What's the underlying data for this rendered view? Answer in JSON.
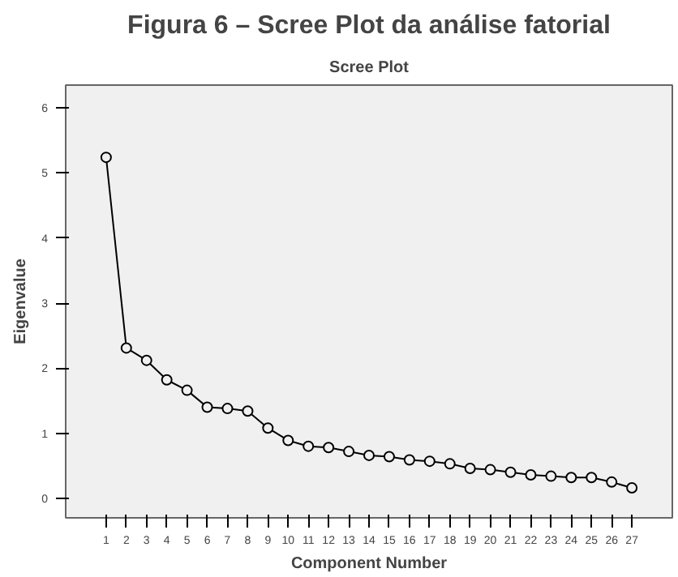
{
  "chart_data": {
    "type": "line",
    "title": "Figura 6 – Scree Plot da análise fatorial",
    "subtitle": "Scree Plot",
    "xlabel": "Component Number",
    "ylabel": "Eigenvalue",
    "x": [
      1,
      2,
      3,
      4,
      5,
      6,
      7,
      8,
      9,
      10,
      11,
      12,
      13,
      14,
      15,
      16,
      17,
      18,
      19,
      20,
      21,
      22,
      23,
      24,
      25,
      26,
      27
    ],
    "series": [
      {
        "color": "#000000",
        "values": [
          5.24,
          2.31,
          2.12,
          1.82,
          1.66,
          1.4,
          1.38,
          1.34,
          1.08,
          0.89,
          0.8,
          0.78,
          0.72,
          0.66,
          0.64,
          0.59,
          0.57,
          0.53,
          0.46,
          0.44,
          0.4,
          0.36,
          0.34,
          0.32,
          0.32,
          0.25,
          0.16
        ]
      }
    ],
    "xlim": [
      -1,
      29
    ],
    "ylim": [
      -0.3,
      6.35
    ],
    "xticks": [
      1,
      2,
      3,
      4,
      5,
      6,
      7,
      8,
      9,
      10,
      11,
      12,
      13,
      14,
      15,
      16,
      17,
      18,
      19,
      20,
      21,
      22,
      23,
      24,
      25,
      26,
      27
    ],
    "yticks": [
      0,
      1,
      2,
      3,
      4,
      5,
      6
    ],
    "marker": "circle",
    "line_style": "solid",
    "grid": false
  }
}
